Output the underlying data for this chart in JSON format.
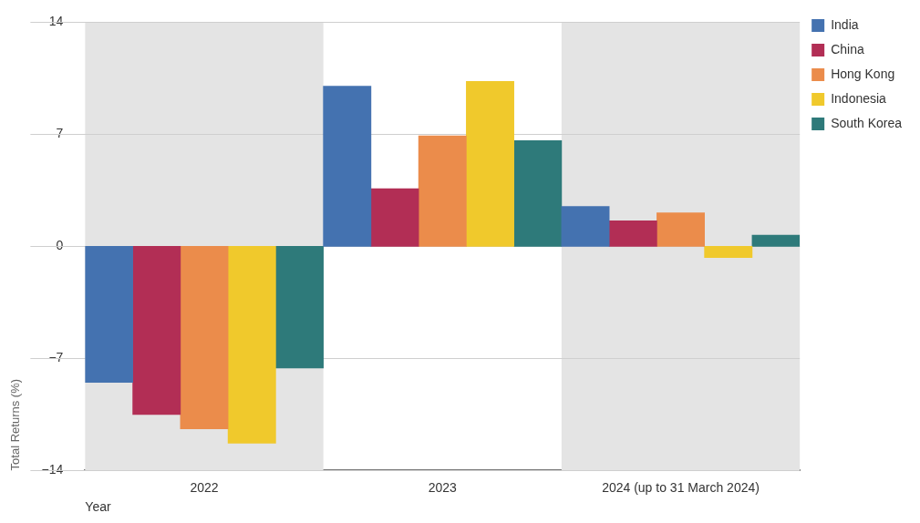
{
  "chart_data": {
    "type": "bar",
    "ylabel": "Total Returns (%)",
    "xlabel": "Year",
    "categories": [
      "2022",
      "2023",
      "2024 (up to 31 March 2024)"
    ],
    "series": [
      {
        "name": "India",
        "color": "#4472b0",
        "values": [
          -8.5,
          10.0,
          2.5
        ]
      },
      {
        "name": "China",
        "color": "#b22e55",
        "values": [
          -10.5,
          3.6,
          1.6
        ]
      },
      {
        "name": "Hong Kong",
        "color": "#eb8c4b",
        "values": [
          -11.4,
          6.9,
          2.1
        ]
      },
      {
        "name": "Indonesia",
        "color": "#f0c92c",
        "values": [
          -12.3,
          10.3,
          -0.7
        ]
      },
      {
        "name": "South Korea",
        "color": "#2e7a7a",
        "values": [
          -7.6,
          6.6,
          0.7
        ]
      }
    ],
    "ylim": [
      -14,
      14
    ],
    "yticks": [
      -14,
      -7,
      0,
      7,
      14
    ],
    "bands": [
      {
        "axis": "x",
        "from": "2022",
        "to": "2022",
        "color": "#e4e4e4"
      },
      {
        "axis": "x",
        "from": "2024 (up to 31 March 2024)",
        "to": "2024 (up to 31 March 2024)",
        "color": "#e4e4e4"
      }
    ],
    "grid": "y",
    "legend": "top right"
  }
}
